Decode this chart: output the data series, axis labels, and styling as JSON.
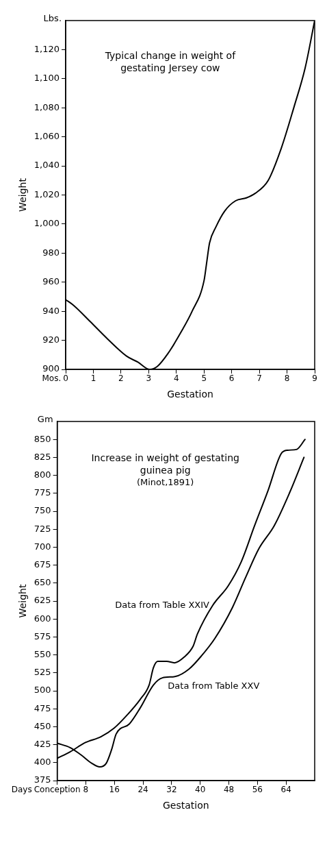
{
  "chart_data": [
    {
      "type": "line",
      "title": "Typical change in weight of gestating Jersey cow",
      "xlabel": "Gestation",
      "ylabel": "Weight",
      "annotations": [
        "Lbs.",
        "Mos."
      ],
      "xlim": [
        0,
        9
      ],
      "xticks": [
        0,
        1,
        2,
        3,
        4,
        5,
        6,
        7,
        8,
        9
      ],
      "ylim": [
        900,
        1140
      ],
      "yticks": [
        900,
        920,
        940,
        960,
        980,
        {
          "value": 1000,
          "label": "1,000"
        },
        {
          "value": 1020,
          "label": "1,020"
        },
        {
          "value": 1040,
          "label": "1,040"
        },
        {
          "value": 1060,
          "label": "1,060"
        },
        {
          "value": 1080,
          "label": "1,080"
        },
        {
          "value": 1100,
          "label": "1,100"
        },
        {
          "value": 1120,
          "label": "1,120"
        }
      ],
      "grid": false,
      "legend": false,
      "marker": "none",
      "line_style": "solid",
      "series": [
        {
          "color": "#000000",
          "x": [
            0,
            0.29,
            0.88,
            1.51,
            2.21,
            2.61,
            3.04,
            3.31,
            3.7,
            4.18,
            4.57,
            5.0,
            5.1,
            5.2,
            5.43,
            5.75,
            6.14,
            6.53,
            6.84,
            7.32,
            7.79,
            8.26,
            8.65,
            9.0
          ],
          "values": [
            948,
            944,
            933,
            921,
            909,
            905,
            900,
            902,
            911,
            926,
            940,
            961,
            974,
            987,
            998,
            1009,
            1016,
            1018,
            1021,
            1030,
            1052,
            1081,
            1107,
            1140
          ]
        }
      ]
    },
    {
      "type": "line",
      "title": "Increase in weight of gestating guinea pig",
      "subtitle": "(Minot,1891)",
      "xlabel": "Gestation",
      "ylabel": "Weight",
      "annotations": [
        "Gm",
        "Days"
      ],
      "xlim": [
        0,
        72
      ],
      "xticks": [
        {
          "value": 0,
          "label": "Conception"
        },
        8,
        16,
        24,
        32,
        40,
        48,
        56,
        64
      ],
      "ylim": [
        375,
        875
      ],
      "yticks": [
        375,
        400,
        425,
        450,
        475,
        500,
        525,
        550,
        575,
        600,
        625,
        650,
        675,
        700,
        725,
        750,
        775,
        800,
        825,
        850
      ],
      "grid": false,
      "legend": false,
      "marker": "none",
      "line_style": "solid",
      "series": [
        {
          "name": "Data from Table XXIV",
          "color": "#000000",
          "x": [
            0,
            3.6,
            7.9,
            12.2,
            15.9,
            19.5,
            23.2,
            25.7,
            26.9,
            28.1,
            30.6,
            32.8,
            35.5,
            38,
            39.2,
            43.5,
            47.8,
            51.5,
            55.2,
            58.9,
            62.6,
            64.4,
            66.9,
            69.3
          ],
          "values": [
            406,
            415,
            428,
            436,
            448,
            466,
            488,
            508,
            532,
            541,
            541,
            539,
            547,
            562,
            579,
            619,
            646,
            680,
            730,
            778,
            830,
            835,
            836,
            850
          ]
        },
        {
          "name": "Data from Table XXV",
          "color": "#000000",
          "x": [
            0,
            3.6,
            6.6,
            9.7,
            11.9,
            13.7,
            15.2,
            16.5,
            20.2,
            23.2,
            26.9,
            29.4,
            33.1,
            36.8,
            40.4,
            44.1,
            49,
            52.7,
            56.4,
            60.7,
            65,
            69
          ],
          "values": [
            427,
            421,
            411,
            399,
            394,
            399,
            418,
            440,
            454,
            476,
            508,
            518,
            520,
            530,
            549,
            573,
            616,
            658,
            698,
            730,
            776,
            825
          ]
        }
      ]
    }
  ]
}
